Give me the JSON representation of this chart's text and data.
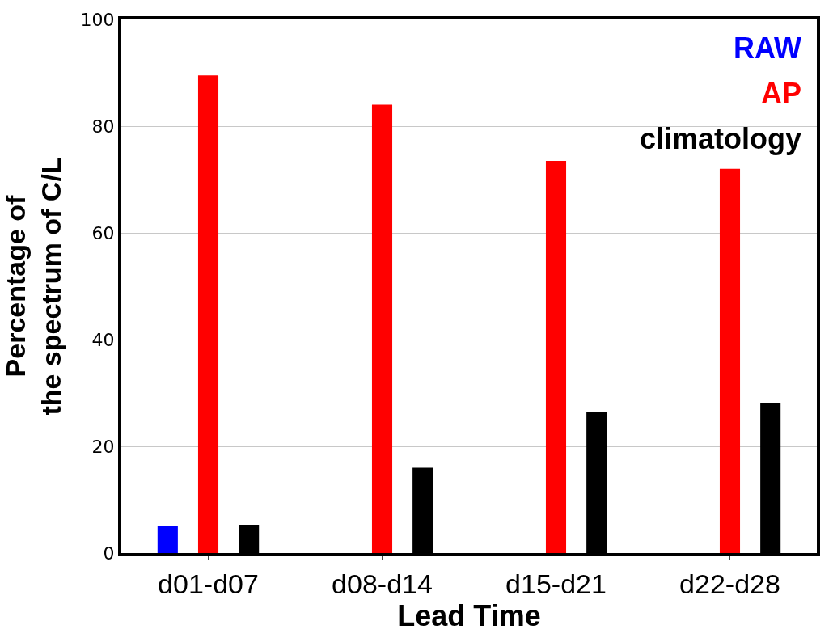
{
  "chart_data": {
    "type": "bar",
    "xlabel": "Lead Time",
    "ylabel": "Percentage of\nthe spectrum of C/L",
    "categories": [
      "d01-d07",
      "d08-d14",
      "d15-d21",
      "d22-d28"
    ],
    "series": [
      {
        "name": "RAW",
        "color": "#0000ff",
        "values": [
          5,
          0,
          0,
          0
        ]
      },
      {
        "name": "AP",
        "color": "#ff0000",
        "values": [
          89.5,
          84,
          73.5,
          72
        ]
      },
      {
        "name": "climatology",
        "color": "#000000",
        "values": [
          5.3,
          16,
          26.4,
          28.1
        ]
      }
    ],
    "ylim": [
      0,
      100
    ],
    "yticks": [
      0,
      20,
      40,
      60,
      80,
      100
    ],
    "grid": "y",
    "legend": "top right"
  }
}
